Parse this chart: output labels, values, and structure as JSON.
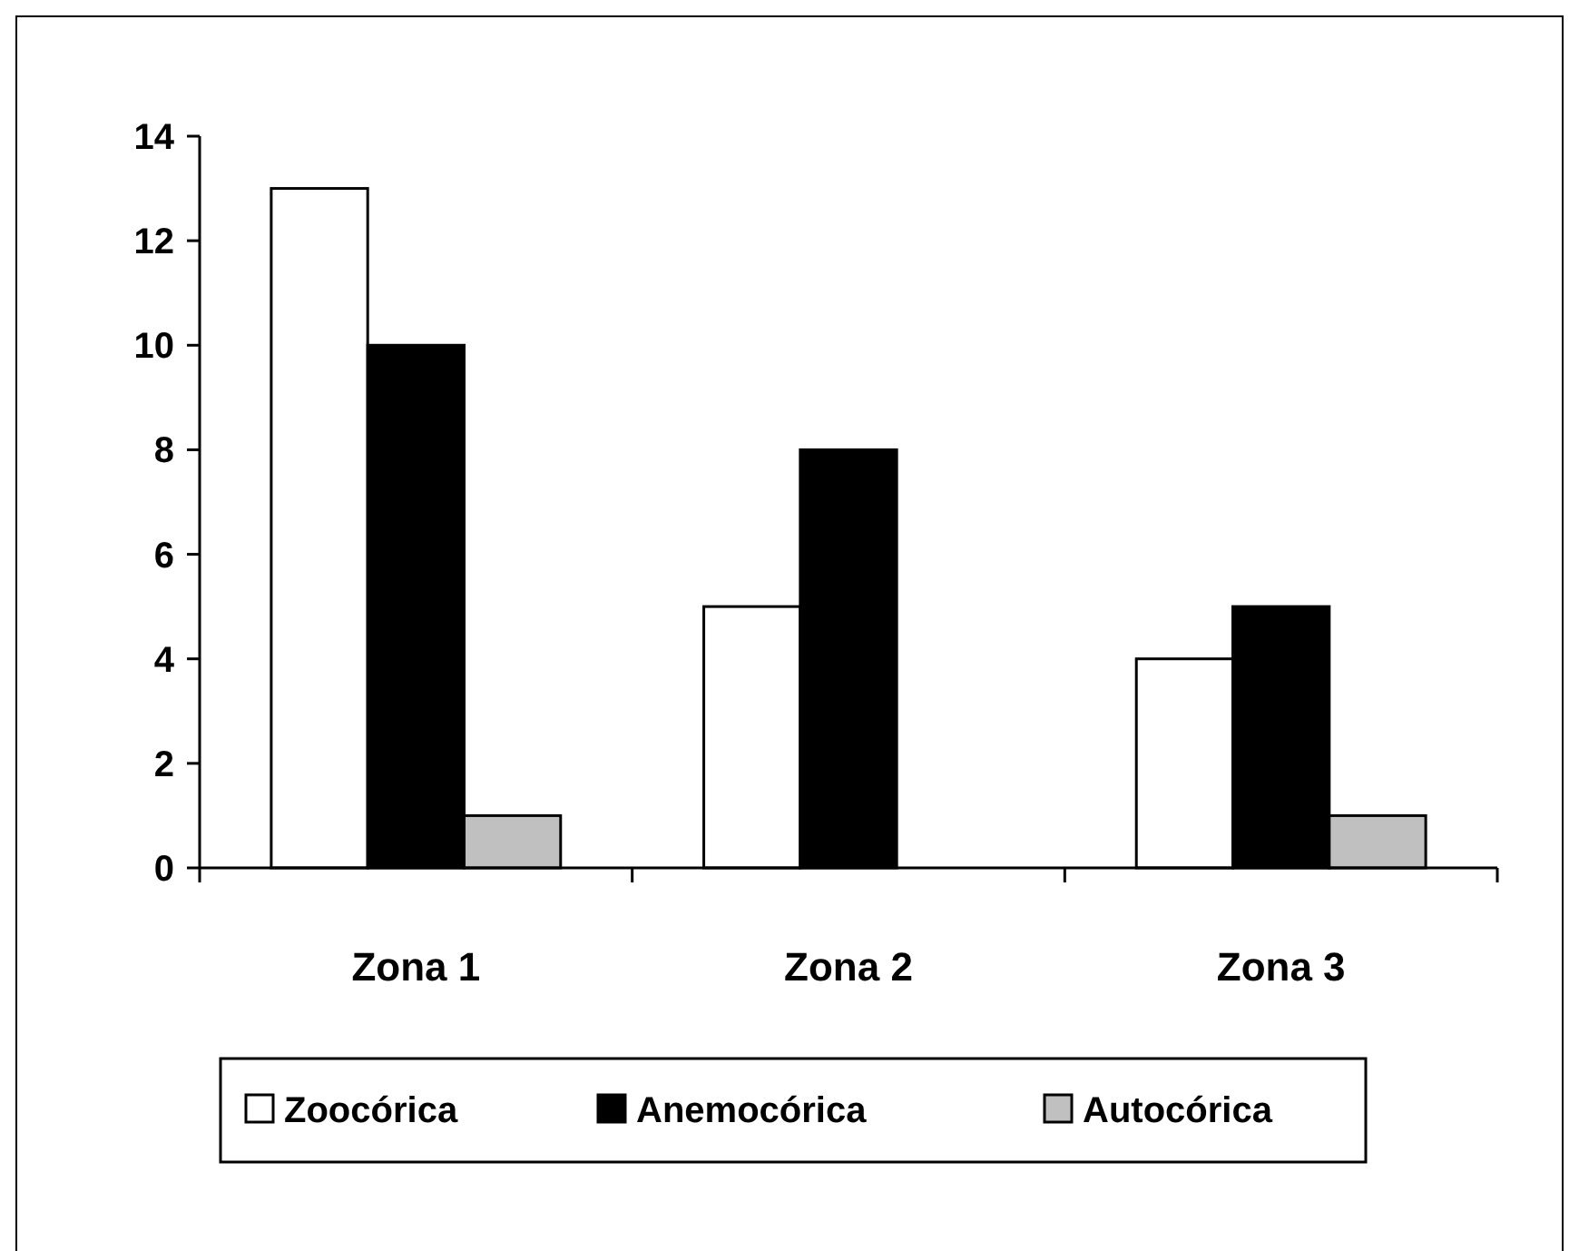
{
  "chart_data": {
    "type": "bar",
    "categories": [
      "Zona 1",
      "Zona 2",
      "Zona 3"
    ],
    "series": [
      {
        "name": "Zoocórica",
        "color": "#ffffff",
        "values": [
          13,
          5,
          4
        ]
      },
      {
        "name": "Anemocórica",
        "color": "#000000",
        "values": [
          10,
          8,
          5
        ]
      },
      {
        "name": "Autocórica",
        "color": "#c0c0c0",
        "values": [
          1,
          0,
          1
        ]
      }
    ],
    "ylim": [
      0,
      14
    ],
    "yticks": [
      0,
      2,
      4,
      6,
      8,
      10,
      12,
      14
    ],
    "grid": false,
    "legend": "bottom"
  }
}
